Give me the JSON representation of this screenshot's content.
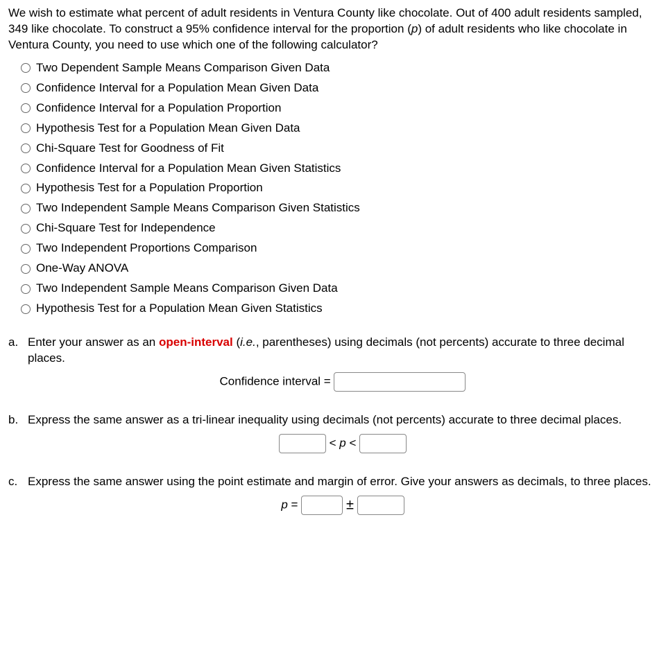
{
  "question": {
    "stem_before_p": "We wish to estimate what percent of adult residents in Ventura County like chocolate. Out of 400 adult residents sampled, 349 like chocolate. To construct a 95% confidence interval for the proportion (",
    "p_symbol": "p",
    "stem_after_p": ") of adult residents who like chocolate in Ventura County, you need to use which one of the following calculator?"
  },
  "options": [
    "Two Dependent Sample Means Comparison Given Data",
    "Confidence Interval for a Population Mean Given Data",
    "Confidence Interval for a Population Proportion",
    "Hypothesis Test for a Population Mean Given Data",
    "Chi-Square Test for Goodness of Fit",
    "Confidence Interval for a Population Mean Given Statistics",
    "Hypothesis Test for a Population Proportion",
    "Two Independent Sample Means Comparison Given Statistics",
    "Chi-Square Test for Independence",
    "Two Independent Proportions Comparison",
    "One-Way ANOVA",
    "Two Independent Sample Means Comparison Given Data",
    "Hypothesis Test for a Population Mean Given Statistics"
  ],
  "parts": {
    "a": {
      "label": "a.",
      "text_before": "Enter your answer as an ",
      "highlight": "open-interval",
      "text_mid": " (",
      "ie": "i.e.",
      "text_after": ", parentheses) using decimals (not percents) accurate to three decimal places.",
      "field_label": "Confidence interval ="
    },
    "b": {
      "label": "b.",
      "text": "Express the same answer as a tri-linear inequality using decimals (not percents) accurate to three decimal places.",
      "lt1": "<",
      "p": "p",
      "lt2": "<"
    },
    "c": {
      "label": "c.",
      "text": "Express the same answer using the point estimate and margin of error. Give your answers as decimals, to three places.",
      "p": "p",
      "eq": "=",
      "pm": "±"
    }
  }
}
